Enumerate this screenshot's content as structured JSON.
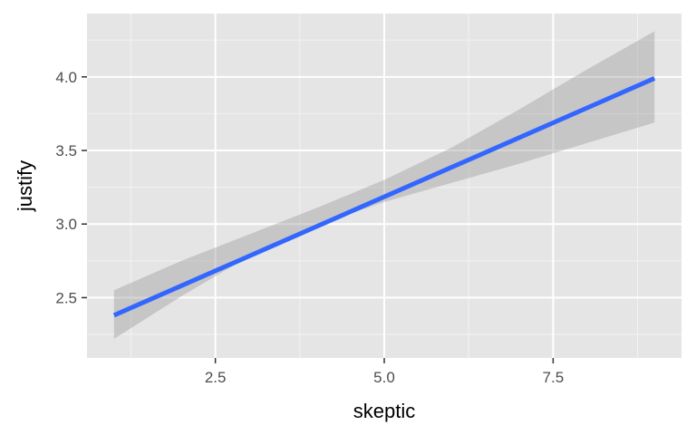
{
  "chart_data": {
    "type": "line",
    "title": "",
    "xlabel": "skeptic",
    "ylabel": "justify",
    "xlim": [
      0.6,
      9.4
    ],
    "ylim": [
      2.09,
      4.43
    ],
    "x_ticks": [
      2.5,
      5.0,
      7.5
    ],
    "x_tick_labels": [
      "2.5",
      "5.0",
      "7.5"
    ],
    "y_ticks": [
      2.5,
      3.0,
      3.5,
      4.0
    ],
    "y_tick_labels": [
      "2.5",
      "3.0",
      "3.5",
      "4.0"
    ],
    "grid": true,
    "series": [
      {
        "x": [
          1.0,
          9.0
        ],
        "y": [
          2.38,
          3.99
        ],
        "color": "#3366FF",
        "ci_lower": [
          [
            1.0,
            2.22
          ],
          [
            2.0,
            2.51
          ],
          [
            3.0,
            2.78
          ],
          [
            4.0,
            2.99
          ],
          [
            5.0,
            3.15
          ],
          [
            6.0,
            3.28
          ],
          [
            7.0,
            3.41
          ],
          [
            8.0,
            3.55
          ],
          [
            9.0,
            3.69
          ]
        ],
        "ci_upper": [
          [
            1.0,
            2.55
          ],
          [
            2.0,
            2.75
          ],
          [
            3.0,
            2.93
          ],
          [
            4.0,
            3.11
          ],
          [
            5.0,
            3.3
          ],
          [
            6.0,
            3.52
          ],
          [
            7.0,
            3.78
          ],
          [
            8.0,
            4.05
          ],
          [
            9.0,
            4.31
          ]
        ],
        "ci_color": "#999999"
      }
    ],
    "colors": {
      "panel_background": "#EBEBEB",
      "grid_major": "#FFFFFF",
      "tick_mark": "#333333"
    }
  }
}
